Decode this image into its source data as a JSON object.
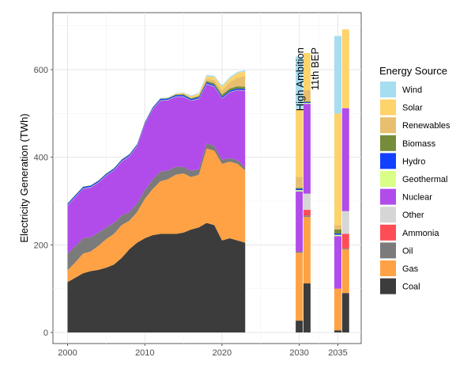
{
  "chart_data": {
    "type": "area",
    "ylabel": "Electricity Generation (TWh)",
    "xlabel": "",
    "xlim": [
      1998,
      2037
    ],
    "ylim": [
      0,
      720
    ],
    "x_ticks": [
      2000,
      2010,
      2020,
      2030,
      2035
    ],
    "y_ticks": [
      0,
      200,
      400,
      600
    ],
    "legend": {
      "title": "Energy Source",
      "position": "right",
      "entries": [
        {
          "name": "Wind",
          "color": "#A6DDF0"
        },
        {
          "name": "Solar",
          "color": "#FFD36B"
        },
        {
          "name": "Renewables",
          "color": "#E7BF6E"
        },
        {
          "name": "Biomass",
          "color": "#758C3A"
        },
        {
          "name": "Hydro",
          "color": "#1140FF"
        },
        {
          "name": "Geothermal",
          "color": "#DAFF87"
        },
        {
          "name": "Nuclear",
          "color": "#B14CEB"
        },
        {
          "name": "Other",
          "color": "#D6D6D6"
        },
        {
          "name": "Ammonia",
          "color": "#FF4D55"
        },
        {
          "name": "Oil",
          "color": "#7B7B7B"
        },
        {
          "name": "Gas",
          "color": "#FFA245"
        },
        {
          "name": "Coal",
          "color": "#3C3C3C"
        }
      ]
    },
    "historical": {
      "years": [
        2000,
        2001,
        2002,
        2003,
        2004,
        2005,
        2006,
        2007,
        2008,
        2009,
        2010,
        2011,
        2012,
        2013,
        2014,
        2015,
        2016,
        2017,
        2018,
        2019,
        2020,
        2021,
        2022,
        2023
      ],
      "series": [
        {
          "name": "Coal",
          "values": [
            115,
            125,
            135,
            140,
            143,
            148,
            155,
            170,
            190,
            205,
            215,
            222,
            225,
            225,
            225,
            228,
            235,
            240,
            250,
            245,
            210,
            215,
            210,
            205
          ]
        },
        {
          "name": "Gas",
          "values": [
            27,
            35,
            45,
            45,
            55,
            65,
            70,
            75,
            65,
            70,
            90,
            105,
            120,
            125,
            135,
            135,
            120,
            120,
            170,
            170,
            175,
            175,
            175,
            165
          ]
        },
        {
          "name": "Oil",
          "values": [
            38,
            37,
            35,
            32,
            30,
            27,
            25,
            22,
            20,
            20,
            20,
            22,
            22,
            20,
            18,
            15,
            14,
            13,
            12,
            11,
            9,
            8,
            8,
            7
          ]
        },
        {
          "name": "Ammonia",
          "values": [
            0,
            0,
            0,
            0,
            0,
            0,
            0,
            0,
            0,
            0,
            0,
            0,
            0,
            0,
            0,
            0,
            0,
            0,
            0,
            0,
            0,
            0,
            0,
            0
          ]
        },
        {
          "name": "Other",
          "values": [
            0,
            0,
            0,
            0,
            0,
            0,
            0,
            0,
            0,
            0,
            0,
            0,
            0,
            0,
            0,
            0,
            0,
            0,
            0,
            0,
            0,
            0,
            0,
            0
          ]
        },
        {
          "name": "Nuclear",
          "values": [
            110,
            112,
            113,
            114,
            114,
            118,
            120,
            123,
            127,
            130,
            150,
            160,
            162,
            160,
            160,
            160,
            160,
            160,
            135,
            135,
            140,
            150,
            160,
            175
          ]
        },
        {
          "name": "Geothermal",
          "values": [
            1,
            1,
            1,
            1,
            1,
            1,
            1,
            1,
            1,
            1,
            1,
            1,
            1,
            1,
            1,
            1,
            1,
            1,
            1,
            1,
            1,
            1,
            1,
            1
          ]
        },
        {
          "name": "Hydro",
          "values": [
            3,
            3,
            3,
            3,
            3,
            3,
            3,
            3,
            3,
            3,
            3,
            3,
            3,
            3,
            3,
            3,
            3,
            3,
            3,
            3,
            3,
            3,
            3,
            3
          ]
        },
        {
          "name": "Biomass",
          "values": [
            1,
            1,
            1,
            1,
            1,
            1,
            1,
            1,
            1,
            1,
            1,
            1,
            1,
            1,
            1,
            2,
            2,
            3,
            3,
            4,
            5,
            5,
            5,
            5
          ]
        },
        {
          "name": "Renewables",
          "values": [
            0,
            0,
            0,
            0,
            0,
            0,
            0,
            0,
            0,
            0,
            0,
            0,
            0,
            0,
            0,
            0,
            0,
            0,
            5,
            7,
            10,
            15,
            20,
            25
          ]
        },
        {
          "name": "Solar",
          "values": [
            0,
            0,
            0,
            0,
            0,
            0,
            0,
            0,
            0,
            0,
            0,
            0,
            0,
            1,
            2,
            3,
            4,
            5,
            6,
            7,
            8,
            8,
            10,
            10
          ]
        },
        {
          "name": "Wind",
          "values": [
            0,
            0,
            0,
            0,
            0,
            0,
            0,
            0,
            0,
            0,
            0,
            0,
            1,
            1,
            1,
            1,
            2,
            2,
            3,
            3,
            3,
            3,
            3,
            3
          ]
        }
      ]
    },
    "scenarios": [
      {
        "label": "High Ambition",
        "x": 2030,
        "stack": [
          {
            "name": "Coal",
            "value": 27
          },
          {
            "name": "Gas",
            "value": 155
          },
          {
            "name": "Oil",
            "value": 3
          },
          {
            "name": "Ammonia",
            "value": 0
          },
          {
            "name": "Other",
            "value": 0
          },
          {
            "name": "Nuclear",
            "value": 137
          },
          {
            "name": "Geothermal",
            "value": 3
          },
          {
            "name": "Hydro",
            "value": 3
          },
          {
            "name": "Biomass",
            "value": 2
          },
          {
            "name": "Renewables",
            "value": 25
          },
          {
            "name": "Solar",
            "value": 155
          },
          {
            "name": "Wind",
            "value": 120
          }
        ]
      },
      {
        "label": "11th BEP",
        "x": 2031,
        "stack": [
          {
            "name": "Coal",
            "value": 112
          },
          {
            "name": "Gas",
            "value": 152
          },
          {
            "name": "Oil",
            "value": 3
          },
          {
            "name": "Ammonia",
            "value": 13
          },
          {
            "name": "Other",
            "value": 37
          },
          {
            "name": "Nuclear",
            "value": 205
          },
          {
            "name": "Geothermal",
            "value": 2
          },
          {
            "name": "Hydro",
            "value": 2
          },
          {
            "name": "Biomass",
            "value": 2
          },
          {
            "name": "Renewables",
            "value": 25
          },
          {
            "name": "Solar",
            "value": 85
          },
          {
            "name": "Wind",
            "value": 0
          }
        ]
      },
      {
        "label": "",
        "x": 2035,
        "stack": [
          {
            "name": "Coal",
            "value": 5
          },
          {
            "name": "Gas",
            "value": 95
          },
          {
            "name": "Oil",
            "value": 0
          },
          {
            "name": "Ammonia",
            "value": 0
          },
          {
            "name": "Other",
            "value": 0
          },
          {
            "name": "Nuclear",
            "value": 120
          },
          {
            "name": "Geothermal",
            "value": 3
          },
          {
            "name": "Hydro",
            "value": 3
          },
          {
            "name": "Biomass",
            "value": 9
          },
          {
            "name": "Renewables",
            "value": 10
          },
          {
            "name": "Solar",
            "value": 255
          },
          {
            "name": "Wind",
            "value": 177
          }
        ]
      },
      {
        "label": "",
        "x": 2036,
        "stack": [
          {
            "name": "Coal",
            "value": 90
          },
          {
            "name": "Gas",
            "value": 100
          },
          {
            "name": "Oil",
            "value": 2
          },
          {
            "name": "Ammonia",
            "value": 33
          },
          {
            "name": "Other",
            "value": 52
          },
          {
            "name": "Nuclear",
            "value": 235
          },
          {
            "name": "Geothermal",
            "value": 0
          },
          {
            "name": "Hydro",
            "value": 0
          },
          {
            "name": "Biomass",
            "value": 0
          },
          {
            "name": "Renewables",
            "value": 0
          },
          {
            "name": "Solar",
            "value": 180
          },
          {
            "name": "Wind",
            "value": 0
          }
        ]
      }
    ]
  }
}
